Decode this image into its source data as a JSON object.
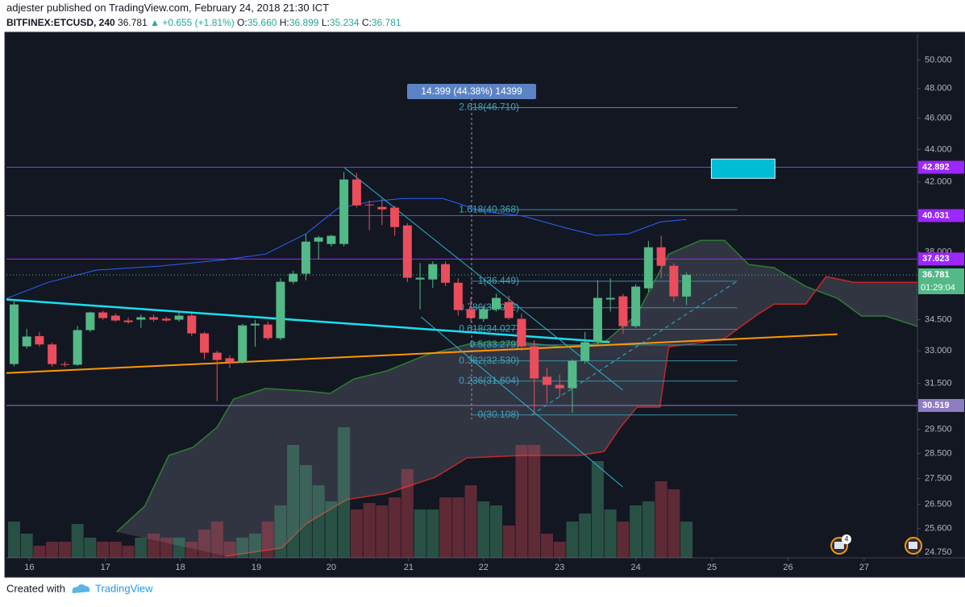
{
  "header": {
    "author": "adjester",
    "published": "published on TradingView.com, February 24, 2018 21:30 ICT",
    "symbol": "BITFINEX:ETCUSD, 240",
    "last": "36.781",
    "change": "▲ +0.655 (+1.81%)",
    "o_label": "O:",
    "o": "35.660",
    "h_label": "H:",
    "h": "36.899",
    "l_label": "L:",
    "l": "35.234",
    "c_label": "C:",
    "c": "36.781"
  },
  "footer": {
    "created": "Created with",
    "brand": "TradingView"
  },
  "chart_data": {
    "type": "candlestick",
    "log_scale": true,
    "ylim": [
      24.55,
      51.9
    ],
    "yticks": [
      {
        "value": 50,
        "label": "50.000"
      },
      {
        "value": 48,
        "label": "48.000"
      },
      {
        "value": 46,
        "label": "46.000"
      },
      {
        "value": 44,
        "label": "44.000"
      },
      {
        "value": 42,
        "label": "42.000"
      },
      {
        "value": 38,
        "label": "38.000"
      },
      {
        "value": 34.5,
        "label": "34.500"
      },
      {
        "value": 33,
        "label": "33.000"
      },
      {
        "value": 31.5,
        "label": "31.500"
      },
      {
        "value": 29.5,
        "label": "29.500"
      },
      {
        "value": 28.5,
        "label": "28.500"
      },
      {
        "value": 27.5,
        "label": "27.500"
      },
      {
        "value": 26.5,
        "label": "26.500"
      },
      {
        "value": 25.6,
        "label": "25.600"
      },
      {
        "value": 24.75,
        "label": "24.750"
      }
    ],
    "xlim": [
      -0.6,
      71.2
    ],
    "xticks": [
      {
        "value": 1.2,
        "label": "16"
      },
      {
        "value": 7.2,
        "label": "17"
      },
      {
        "value": 13.1,
        "label": "18"
      },
      {
        "value": 19.1,
        "label": "19"
      },
      {
        "value": 25,
        "label": "20"
      },
      {
        "value": 31.1,
        "label": "21"
      },
      {
        "value": 37,
        "label": "22"
      },
      {
        "value": 43,
        "label": "23"
      },
      {
        "value": 49,
        "label": "24"
      },
      {
        "value": 55,
        "label": "25"
      },
      {
        "value": 61,
        "label": "26"
      },
      {
        "value": 67,
        "label": "27"
      }
    ],
    "up_color": "#53b987",
    "down_color": "#eb4d5c",
    "open": [
      32.38,
      33.21,
      33.7,
      33.3,
      32.38,
      32.35,
      33.99,
      34.86,
      34.7,
      34.46,
      34.5,
      34.62,
      34.55,
      34.5,
      34.7,
      33.83,
      32.91,
      32.65,
      32.46,
      34.22,
      34.26,
      33.6,
      36.42,
      36.84,
      38.57,
      38.44,
      38.44,
      42.15,
      40.67,
      40.53,
      40.49,
      39.47,
      36.54,
      36.54,
      37.35,
      36.37,
      35.02,
      34.54,
      35.02,
      35.38,
      34.54,
      33.21,
      31.8,
      31.43,
      31.28,
      32.53,
      33.41,
      35.51,
      35.67,
      34.18,
      36.08,
      38.26,
      37.26,
      35.66
    ],
    "high": [
      35.5,
      34.05,
      33.9,
      33.4,
      32.5,
      34.2,
      34.9,
      34.95,
      34.8,
      34.6,
      34.75,
      34.75,
      34.65,
      34.9,
      34.8,
      33.9,
      33.0,
      32.8,
      34.3,
      34.5,
      34.4,
      36.6,
      37.0,
      39.0,
      38.9,
      38.95,
      42.6,
      42.55,
      40.9,
      41.0,
      40.6,
      39.6,
      37.4,
      37.5,
      37.5,
      36.6,
      35.6,
      35.2,
      35.8,
      35.7,
      34.8,
      33.5,
      32.2,
      31.9,
      32.6,
      33.9,
      36.5,
      36.6,
      35.8,
      36.3,
      38.6,
      38.9,
      37.4,
      36.899
    ],
    "low": [
      32.27,
      33.1,
      33.2,
      32.25,
      32.25,
      32.3,
      33.9,
      34.5,
      34.4,
      34.3,
      34.1,
      34.4,
      34.4,
      34.4,
      33.7,
      32.6,
      30.71,
      32.2,
      32.4,
      33.2,
      33.5,
      33.5,
      36.3,
      36.5,
      37.6,
      38.3,
      38.3,
      40.5,
      39.2,
      39.5,
      38.9,
      36.4,
      35.0,
      36.1,
      36.2,
      34.7,
      34.4,
      34.4,
      34.9,
      34.5,
      33.0,
      30.2,
      30.6,
      30.9,
      30.2,
      32.4,
      33.3,
      34.9,
      33.8,
      34.1,
      35.9,
      36.6,
      35.4,
      35.234
    ],
    "close": [
      35.26,
      33.68,
      33.3,
      32.38,
      32.35,
      33.99,
      34.86,
      34.58,
      34.46,
      34.38,
      34.62,
      34.5,
      34.46,
      34.7,
      33.83,
      32.91,
      32.57,
      32.46,
      34.22,
      34.3,
      33.6,
      36.42,
      36.84,
      38.57,
      38.8,
      38.89,
      42.15,
      40.62,
      40.62,
      40.39,
      39.38,
      36.63,
      36.63,
      37.35,
      36.37,
      34.98,
      34.58,
      35.02,
      35.59,
      34.58,
      33.21,
      31.72,
      31.43,
      31.28,
      32.53,
      33.41,
      35.59,
      35.59,
      34.18,
      36.17,
      38.26,
      37.26,
      35.67,
      36.781
    ],
    "volume": [
      45,
      30,
      15,
      20,
      20,
      42,
      25,
      20,
      20,
      15,
      25,
      30,
      25,
      25,
      20,
      35,
      45,
      20,
      25,
      30,
      45,
      65,
      140,
      115,
      90,
      70,
      162,
      60,
      68,
      65,
      75,
      110,
      60,
      60,
      75,
      75,
      90,
      70,
      65,
      40,
      140,
      140,
      30,
      20,
      45,
      55,
      120,
      60,
      45,
      65,
      70,
      95,
      85,
      45
    ],
    "levels": [
      {
        "value": 42.892,
        "color": "#9c27ff"
      },
      {
        "value": 40.031,
        "color": "#9c27ff"
      },
      {
        "value": 37.623,
        "color": "#9c27ff"
      },
      {
        "value": 30.519,
        "color": "#8e7cc3"
      }
    ],
    "last_price": {
      "value": 36.781,
      "countdown": "01:29:04",
      "color": "#53b987"
    },
    "fib": {
      "x_range": [
        36,
        57
      ],
      "color": "#3a8ea3",
      "measure": "14.399 (44.38%) 14399",
      "levels": [
        {
          "label": "2.618(46.710)",
          "value": 46.71
        },
        {
          "label": "1.618(40.368)",
          "value": 40.368
        },
        {
          "label": "1(36.449)",
          "value": 36.449
        },
        {
          "label": "0.786(35.092)",
          "value": 35.092
        },
        {
          "label": "0.618(34.027)",
          "value": 34.027
        },
        {
          "label": "0.5(33.279)",
          "value": 33.279
        },
        {
          "label": "0.382(32.530)",
          "value": 32.53
        },
        {
          "label": "0.236(31.604)",
          "value": 31.604
        },
        {
          "label": "0(30.108)",
          "value": 30.108
        }
      ]
    },
    "lines": [
      {
        "color": "#18e0f0",
        "width": 2.5,
        "x": [
          -0.6,
          46.95
        ],
        "y": [
          35.51,
          33.41
        ]
      },
      {
        "color": "#ff9800",
        "width": 2,
        "x": [
          -0.6,
          64.9
        ],
        "y": [
          31.97,
          33.79
        ]
      },
      {
        "color": "#26b6d0",
        "width": 1,
        "x": [
          26.05,
          47.97
        ],
        "y": [
          42.86,
          31.2
        ]
      },
      {
        "color": "#26b6d0",
        "width": 1,
        "x": [
          32.08,
          47.97
        ],
        "y": [
          34.64,
          27.17
        ]
      },
      {
        "color": "#26b6d0",
        "width": 1,
        "dashed": true,
        "x": [
          40.79,
          56.99
        ],
        "y": [
          30.11,
          36.45
        ]
      }
    ],
    "basis": {
      "color": "#2962ff",
      "x": [
        -0.6,
        2.67,
        6.48,
        11.56,
        16.65,
        19.82,
        23.0,
        25.54,
        28.08,
        30.62,
        33.8,
        36.98,
        40.15,
        43.33,
        45.87,
        48.41,
        50.95,
        52.99
      ],
      "y": [
        35.57,
        36.39,
        37.03,
        37.25,
        37.59,
        37.89,
        39.0,
        40.46,
        40.83,
        41.02,
        41.02,
        40.27,
        40.0,
        39.36,
        38.91,
        39.0,
        39.67,
        39.81
      ]
    },
    "cloud": {
      "span_a": {
        "color": "#2e7d32",
        "x": [
          8.1,
          10.3,
          12.2,
          14.1,
          16.0,
          17.3,
          19.8,
          23.0,
          24.9,
          26.8,
          29.4,
          32.5,
          36.3,
          40.2,
          43.3,
          46.5,
          49.1,
          51.6,
          54.1,
          56.0,
          57.9,
          59.9,
          62.4,
          64.9,
          66.8,
          68.7,
          71.2
        ],
        "y": [
          25.48,
          26.43,
          28.42,
          28.75,
          29.59,
          30.8,
          31.27,
          31.16,
          31.05,
          31.7,
          32.07,
          32.81,
          33.39,
          33.39,
          33.19,
          33.39,
          34.76,
          37.89,
          38.64,
          38.64,
          37.33,
          37.16,
          36.18,
          35.57,
          34.68,
          34.68,
          34.17
        ]
      },
      "span_b": {
        "color": "#c62828",
        "x": [
          16.7,
          21.1,
          23.0,
          26.2,
          29.4,
          33.2,
          35.7,
          40.2,
          44.6,
          46.5,
          47.8,
          49.1,
          50.9,
          51.6,
          54.1,
          56.0,
          57.3,
          58.6,
          59.9,
          62.4,
          64.0,
          66.2,
          71.2
        ],
        "y": [
          24.61,
          24.9,
          25.77,
          26.68,
          26.92,
          27.55,
          28.32,
          28.42,
          28.42,
          28.58,
          29.59,
          30.45,
          30.45,
          33.19,
          33.39,
          33.58,
          34.17,
          34.76,
          35.28,
          35.28,
          36.69,
          36.39,
          36.39
        ]
      },
      "fill": "rgba(160,165,180,0.22)"
    },
    "box": {
      "x": [
        54.96,
        59.97
      ],
      "y": [
        43.4,
        42.22
      ],
      "color": "#00bcd4"
    },
    "events_badge": "4"
  }
}
